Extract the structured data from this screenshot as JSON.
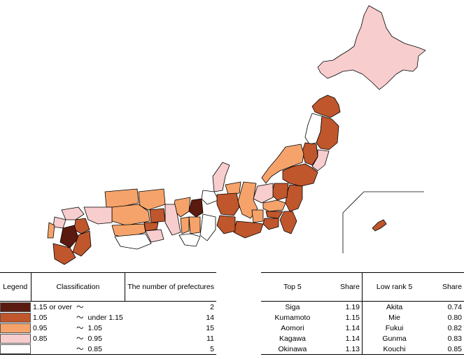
{
  "colors": {
    "c1": "#5a1a10",
    "c2": "#c0562c",
    "c3": "#f5a36a",
    "c4": "#f8cdcd",
    "c5": "#ffffff"
  },
  "legend": {
    "header_legend": "Legend",
    "header_classification": "Classification",
    "header_count": "The number of prefectures",
    "rows": [
      {
        "from": "1.15 or over",
        "tilde": "〜",
        "to": "",
        "count": "2",
        "color": "#5a1a10"
      },
      {
        "from": "1.05",
        "tilde": "〜",
        "to": "under 1.15",
        "count": "14",
        "color": "#c0562c"
      },
      {
        "from": "0.95",
        "tilde": "〜",
        "to": "1.05",
        "count": "15",
        "color": "#f5a36a"
      },
      {
        "from": "0.85",
        "tilde": "〜",
        "to": "0.95",
        "count": "11",
        "color": "#f8cdcd"
      },
      {
        "from": "",
        "tilde": "〜",
        "to": "0.85",
        "count": "5",
        "color": "#ffffff"
      }
    ]
  },
  "ranking": {
    "top_header": "Top 5",
    "share_header": "Share",
    "low_header": "Low rank 5",
    "share_header2": "Share",
    "rows": [
      {
        "top": "Siga",
        "top_share": "1.19",
        "low": "Akita",
        "low_share": "0.74"
      },
      {
        "top": "Kumamoto",
        "top_share": "1.15",
        "low": "Mie",
        "low_share": "0.80"
      },
      {
        "top": "Aomori",
        "top_share": "1.14",
        "low": "Fukui",
        "low_share": "0.82"
      },
      {
        "top": "Kagawa",
        "top_share": "1.14",
        "low": "Gunma",
        "low_share": "0.83"
      },
      {
        "top": "Okinawa",
        "top_share": "1.13",
        "low": "Kouchi",
        "low_share": "0.85"
      }
    ]
  }
}
